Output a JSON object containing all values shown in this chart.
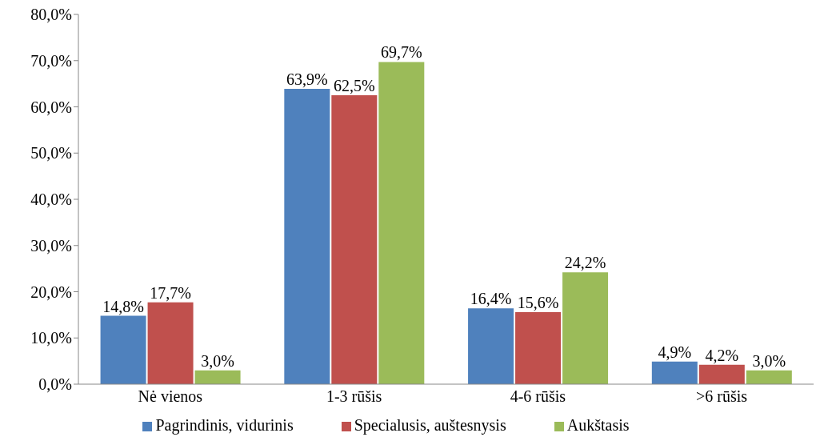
{
  "chart_data": {
    "type": "bar",
    "categories": [
      "Nė vienos",
      "1-3 rūšis",
      "4-6 rūšis",
      ">6 rūšis"
    ],
    "series": [
      {
        "name": "Pagrindinis, vidurinis",
        "color": "#4f81bd",
        "values": [
          14.8,
          63.9,
          16.4,
          4.9
        ],
        "value_labels": [
          "14,8%",
          "63,9%",
          "16,4%",
          "4,9%"
        ]
      },
      {
        "name": "Specialusis, auštesnysis",
        "color": "#c0504d",
        "values": [
          17.7,
          62.5,
          15.6,
          4.2
        ],
        "value_labels": [
          "17,7%",
          "62,5%",
          "15,6%",
          "4,2%"
        ]
      },
      {
        "name": "Aukštasis",
        "color": "#9bbb59",
        "values": [
          3.0,
          69.7,
          24.2,
          3.0
        ],
        "value_labels": [
          "3,0%",
          "69,7%",
          "24,2%",
          "3,0%"
        ]
      }
    ],
    "ylim": [
      0,
      80
    ],
    "yticks": [
      {
        "value": 0,
        "label": "0,0%"
      },
      {
        "value": 10,
        "label": "10,0%"
      },
      {
        "value": 20,
        "label": "20,0%"
      },
      {
        "value": 30,
        "label": "30,0%"
      },
      {
        "value": 40,
        "label": "40,0%"
      },
      {
        "value": 50,
        "label": "50,0%"
      },
      {
        "value": 60,
        "label": "60,0%"
      },
      {
        "value": 70,
        "label": "70,0%"
      },
      {
        "value": 80,
        "label": "80,0%"
      }
    ],
    "grid": false,
    "legend": "bottom"
  }
}
